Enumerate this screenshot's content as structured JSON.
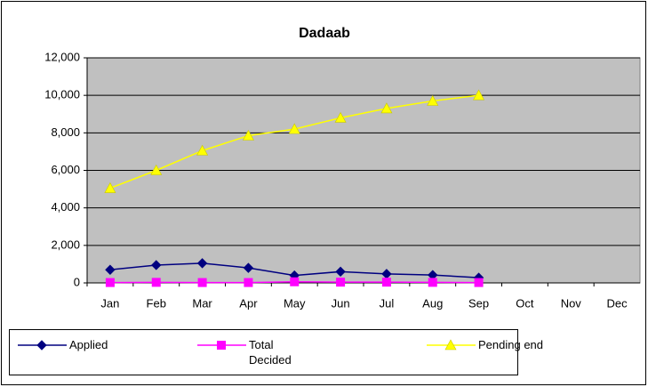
{
  "chart_data": {
    "type": "line",
    "title": "Dadaab",
    "categories": [
      "Jan",
      "Feb",
      "Mar",
      "Apr",
      "May",
      "Jun",
      "Jul",
      "Aug",
      "Sep",
      "Oct",
      "Nov",
      "Dec"
    ],
    "series": [
      {
        "name": "Applied",
        "color": "#000080",
        "marker": "diamond",
        "values": [
          700,
          950,
          1050,
          800,
          400,
          600,
          480,
          420,
          280,
          null,
          null,
          null
        ]
      },
      {
        "name": "Total Decided",
        "color": "#FF00FF",
        "marker": "square",
        "values": [
          20,
          30,
          20,
          20,
          60,
          40,
          40,
          30,
          20,
          null,
          null,
          null
        ]
      },
      {
        "name": "Pending end",
        "color": "#FFFF00",
        "marker": "triangle",
        "values": [
          5050,
          6000,
          7050,
          7850,
          8200,
          8800,
          9300,
          9700,
          10000,
          null,
          null,
          null
        ]
      }
    ],
    "ylim": [
      0,
      12000
    ],
    "yticks": [
      0,
      {
        "value": 2000,
        "label": "2,000"
      },
      {
        "value": 4000,
        "label": "4,000"
      },
      {
        "value": 6000,
        "label": "6,000"
      },
      {
        "value": 8000,
        "label": "8,000"
      },
      {
        "value": 10000,
        "label": "10,000"
      },
      {
        "value": 12000,
        "label": "12,000"
      }
    ],
    "grid": true,
    "legend": "bottom",
    "plot_background": "#C0C0C0"
  }
}
